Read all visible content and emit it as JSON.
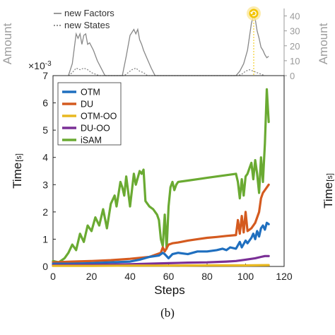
{
  "caption": "(b)",
  "colors": {
    "OTM": "#1f6fbf",
    "DU": "#d45a1f",
    "OTM-OO": "#e8b820",
    "DU-OO": "#7a2f96",
    "iSAM": "#6aaa32",
    "top_axis": "#999999",
    "top_series": "#888888"
  },
  "badge_icon": "refresh-icon",
  "chart_data": [
    {
      "type": "line",
      "ylabel": "Amount",
      "ylabel_right": "Amount",
      "ylim": [
        0,
        45
      ],
      "xlim": [
        0,
        120
      ],
      "yticks_right": [
        "0",
        "10",
        "20",
        "30",
        "40"
      ],
      "legend": [
        "new Factors",
        "new States"
      ],
      "legend_position": "top-left",
      "series": [
        {
          "name": "new Factors",
          "style": "solid",
          "points": [
            [
              8,
              0
            ],
            [
              10,
              8
            ],
            [
              12,
              28
            ],
            [
              13,
              25
            ],
            [
              14,
              28
            ],
            [
              15,
              21
            ],
            [
              16,
              27
            ],
            [
              17,
              28
            ],
            [
              18,
              21
            ],
            [
              19,
              22
            ],
            [
              21,
              17
            ],
            [
              23,
              10
            ],
            [
              25,
              5
            ],
            [
              27,
              0
            ],
            [
              36,
              0
            ],
            [
              38,
              13
            ],
            [
              40,
              27
            ],
            [
              42,
              31
            ],
            [
              43,
              28
            ],
            [
              44,
              31
            ],
            [
              45,
              24
            ],
            [
              46,
              21
            ],
            [
              47,
              17
            ],
            [
              49,
              11
            ],
            [
              51,
              5
            ],
            [
              53,
              0
            ],
            [
              95,
              0
            ],
            [
              97,
              3
            ],
            [
              99,
              8
            ],
            [
              101,
              17
            ],
            [
              103,
              35
            ],
            [
              104,
              40
            ],
            [
              105,
              38
            ],
            [
              106,
              30
            ],
            [
              107,
              25
            ],
            [
              108,
              19
            ],
            [
              109,
              17
            ],
            [
              110,
              14
            ],
            [
              111,
              12
            ],
            [
              112,
              13
            ]
          ]
        },
        {
          "name": "new States",
          "style": "dotted",
          "points": [
            [
              8,
              0
            ],
            [
              10,
              2
            ],
            [
              12,
              5
            ],
            [
              14,
              4
            ],
            [
              16,
              5
            ],
            [
              18,
              4
            ],
            [
              20,
              2
            ],
            [
              22,
              1
            ],
            [
              24,
              0
            ],
            [
              37,
              0
            ],
            [
              39,
              2
            ],
            [
              41,
              4
            ],
            [
              43,
              5
            ],
            [
              45,
              3
            ],
            [
              47,
              2
            ],
            [
              49,
              0
            ],
            [
              96,
              0
            ],
            [
              98,
              1
            ],
            [
              100,
              3
            ],
            [
              102,
              4
            ],
            [
              104,
              3
            ],
            [
              106,
              2
            ],
            [
              108,
              1
            ],
            [
              110,
              0
            ]
          ]
        }
      ]
    },
    {
      "type": "line",
      "xlabel": "Steps",
      "ylabel": "Time",
      "ylabel_unit": "[s]",
      "xlim": [
        0,
        120
      ],
      "ylim": [
        0,
        7
      ],
      "xticks": [
        "0",
        "20",
        "40",
        "60",
        "80",
        "100",
        "120"
      ],
      "yticks": [
        "0",
        "1",
        "2",
        "3",
        "4",
        "5",
        "6",
        "7"
      ],
      "exponent_label": "×10",
      "exponent_power": "-3",
      "legend": [
        "OTM",
        "DU",
        "OTM-OO",
        "DU-OO",
        "iSAM"
      ],
      "legend_position": "top-left",
      "grid": false,
      "series": [
        {
          "name": "OTM",
          "points": [
            [
              0,
              0.1
            ],
            [
              10,
              0.1
            ],
            [
              20,
              0.12
            ],
            [
              30,
              0.15
            ],
            [
              40,
              0.18
            ],
            [
              45,
              0.25
            ],
            [
              50,
              0.35
            ],
            [
              55,
              0.4
            ],
            [
              57,
              0.5
            ],
            [
              58,
              0.45
            ],
            [
              60,
              0.3
            ],
            [
              62,
              0.45
            ],
            [
              65,
              0.5
            ],
            [
              70,
              0.45
            ],
            [
              75,
              0.55
            ],
            [
              80,
              0.55
            ],
            [
              85,
              0.6
            ],
            [
              88,
              0.65
            ],
            [
              90,
              0.6
            ],
            [
              92,
              0.7
            ],
            [
              95,
              0.65
            ],
            [
              97,
              0.9
            ],
            [
              98,
              0.7
            ],
            [
              100,
              0.95
            ],
            [
              101,
              0.85
            ],
            [
              103,
              1.05
            ],
            [
              104,
              1.2
            ],
            [
              105,
              1.0
            ],
            [
              106,
              1.3
            ],
            [
              107,
              1.1
            ],
            [
              108,
              1.4
            ],
            [
              109,
              1.5
            ],
            [
              110,
              1.35
            ],
            [
              111,
              1.6
            ],
            [
              112,
              1.55
            ]
          ]
        },
        {
          "name": "DU",
          "points": [
            [
              0,
              0.15
            ],
            [
              10,
              0.18
            ],
            [
              20,
              0.2
            ],
            [
              30,
              0.23
            ],
            [
              40,
              0.28
            ],
            [
              50,
              0.35
            ],
            [
              56,
              0.5
            ],
            [
              57,
              0.7
            ],
            [
              58,
              0.55
            ],
            [
              60,
              0.8
            ],
            [
              62,
              0.85
            ],
            [
              65,
              0.88
            ],
            [
              70,
              0.95
            ],
            [
              75,
              1.0
            ],
            [
              80,
              1.05
            ],
            [
              85,
              1.08
            ],
            [
              90,
              1.12
            ],
            [
              95,
              1.15
            ],
            [
              96,
              1.7
            ],
            [
              97,
              1.2
            ],
            [
              98,
              1.85
            ],
            [
              99,
              1.25
            ],
            [
              100,
              2.0
            ],
            [
              101,
              1.3
            ],
            [
              103,
              1.4
            ],
            [
              105,
              1.6
            ],
            [
              107,
              2.0
            ],
            [
              108,
              2.5
            ],
            [
              109,
              2.7
            ],
            [
              110,
              2.8
            ],
            [
              112,
              3.0
            ]
          ]
        },
        {
          "name": "OTM-OO",
          "points": [
            [
              0,
              0.02
            ],
            [
              20,
              0.02
            ],
            [
              40,
              0.03
            ],
            [
              60,
              0.03
            ],
            [
              80,
              0.04
            ],
            [
              100,
              0.04
            ],
            [
              112,
              0.05
            ]
          ]
        },
        {
          "name": "DU-OO",
          "points": [
            [
              0,
              0.05
            ],
            [
              20,
              0.06
            ],
            [
              40,
              0.08
            ],
            [
              50,
              0.1
            ],
            [
              60,
              0.12
            ],
            [
              70,
              0.14
            ],
            [
              80,
              0.15
            ],
            [
              90,
              0.18
            ],
            [
              95,
              0.2
            ],
            [
              100,
              0.25
            ],
            [
              105,
              0.3
            ],
            [
              108,
              0.35
            ],
            [
              110,
              0.38
            ],
            [
              112,
              0.38
            ]
          ]
        },
        {
          "name": "iSAM",
          "points": [
            [
              0,
              0.2
            ],
            [
              3,
              0.15
            ],
            [
              6,
              0.3
            ],
            [
              8,
              0.5
            ],
            [
              10,
              0.8
            ],
            [
              12,
              0.6
            ],
            [
              14,
              1.2
            ],
            [
              16,
              0.9
            ],
            [
              18,
              1.5
            ],
            [
              20,
              1.3
            ],
            [
              22,
              1.8
            ],
            [
              24,
              1.5
            ],
            [
              26,
              2.1
            ],
            [
              28,
              1.4
            ],
            [
              30,
              2.3
            ],
            [
              32,
              2.6
            ],
            [
              33,
              2.2
            ],
            [
              35,
              3.1
            ],
            [
              36,
              2.9
            ],
            [
              37,
              2.6
            ],
            [
              38,
              3.3
            ],
            [
              40,
              2.2
            ],
            [
              42,
              3.4
            ],
            [
              43,
              3.0
            ],
            [
              45,
              3.5
            ],
            [
              46,
              3.4
            ],
            [
              47,
              3.55
            ],
            [
              48,
              2.4
            ],
            [
              50,
              2.2
            ],
            [
              52,
              2.1
            ],
            [
              54,
              1.9
            ],
            [
              55,
              1.7
            ],
            [
              56,
              1.0
            ],
            [
              57,
              0.75
            ],
            [
              58,
              1.9
            ],
            [
              59,
              0.65
            ],
            [
              60,
              2.2
            ],
            [
              61,
              2.9
            ],
            [
              62,
              3.1
            ],
            [
              63,
              2.8
            ],
            [
              64,
              3.0
            ],
            [
              65,
              3.1
            ],
            [
              70,
              3.15
            ],
            [
              75,
              3.2
            ],
            [
              80,
              3.25
            ],
            [
              85,
              3.3
            ],
            [
              90,
              3.35
            ],
            [
              95,
              3.4
            ],
            [
              96,
              3.1
            ],
            [
              97,
              2.5
            ],
            [
              98,
              3.2
            ],
            [
              99,
              2.6
            ],
            [
              100,
              3.3
            ],
            [
              101,
              3.4
            ],
            [
              102,
              3.6
            ],
            [
              103,
              3.8
            ],
            [
              104,
              3.2
            ],
            [
              105,
              3.9
            ],
            [
              106,
              3.4
            ],
            [
              107,
              2.7
            ],
            [
              108,
              4.0
            ],
            [
              109,
              3.1
            ],
            [
              110,
              4.5
            ],
            [
              111,
              6.5
            ],
            [
              112,
              5.3
            ]
          ]
        }
      ]
    }
  ]
}
